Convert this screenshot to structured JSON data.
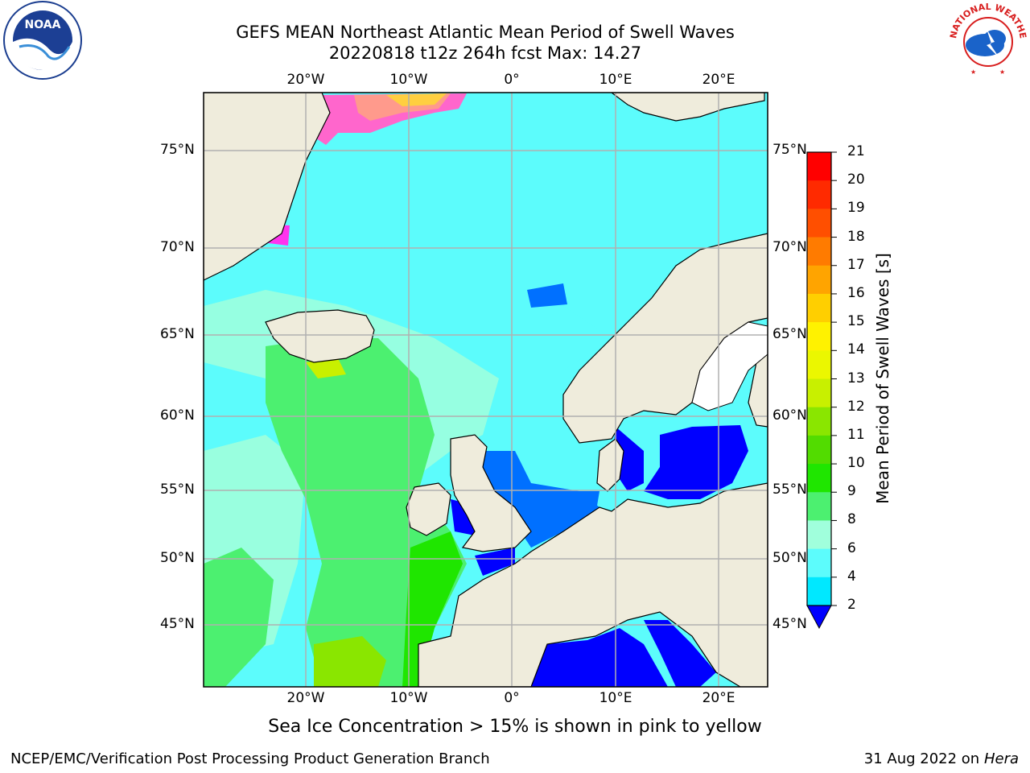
{
  "title": {
    "line1": "GEFS MEAN Northeast Atlantic Mean Period of Swell Waves",
    "line2": "20220818 t12z 264h fcst   Max: 14.27"
  },
  "map": {
    "lat_labels": [
      "75°N",
      "70°N",
      "65°N",
      "60°N",
      "55°N",
      "50°N",
      "45°N"
    ],
    "lon_labels": [
      "20°W",
      "10°W",
      "0°",
      "10°E",
      "20°E"
    ],
    "land_color": "#efecdc",
    "grid_color": "#b0b0b0"
  },
  "colorbar": {
    "label": "Mean Period of Swell Waves [s]",
    "ticks": [
      "21",
      "20",
      "19",
      "18",
      "17",
      "16",
      "15",
      "14",
      "13",
      "12",
      "11",
      "10",
      "9",
      "8",
      "6",
      "4",
      "2"
    ],
    "colors": [
      "#ff0000",
      "#ff2a00",
      "#ff4f00",
      "#ff7b00",
      "#ffa400",
      "#ffcf00",
      "#fff200",
      "#ebf700",
      "#c8f000",
      "#8ae600",
      "#52dc00",
      "#1fe600",
      "#4cf070",
      "#a0ffdc",
      "#5cfcfc",
      "#00e8ff",
      "#0070ff"
    ],
    "under_color": "#0000ff"
  },
  "footer": {
    "ice_note": "Sea Ice Concentration > 15% is shown in pink to yellow",
    "credit": "NCEP/EMC/Verification Post Processing Product Generation Branch",
    "date": "31 Aug 2022 on",
    "host": "Hera"
  },
  "logos": {
    "noaa_text": "NOAA",
    "nws_text": "NATIONAL WEATHER SERVICE"
  }
}
